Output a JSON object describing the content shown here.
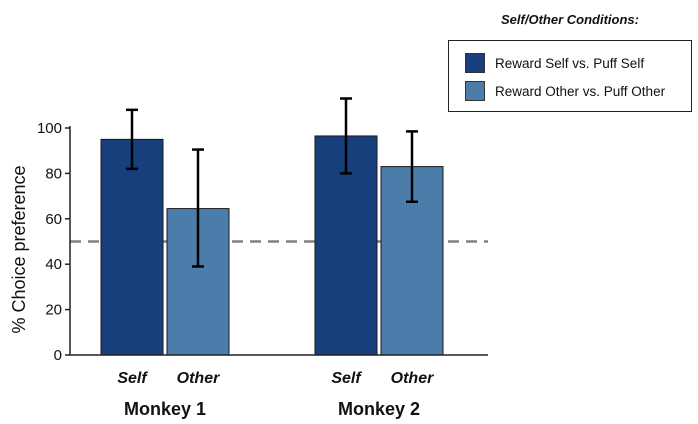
{
  "chart_data": {
    "type": "bar",
    "ylabel": "% Choice preference",
    "ylim": [
      0,
      100
    ],
    "yticks": [
      0,
      20,
      40,
      60,
      80,
      100
    ],
    "reference_line": 50,
    "groups": [
      "Monkey 1",
      "Monkey 2"
    ],
    "categories": [
      "Self",
      "Other"
    ],
    "series": [
      {
        "name": "Reward Self vs. Puff Self",
        "category": "Self",
        "color": "#163f7c",
        "values": [
          95,
          96.5
        ],
        "error_low": [
          82,
          80
        ],
        "error_high": [
          108,
          113
        ]
      },
      {
        "name": "Reward Other vs. Puff Other",
        "category": "Other",
        "color": "#4c7daa",
        "values": [
          64.5,
          83
        ],
        "error_low": [
          39,
          67.5
        ],
        "error_high": [
          90.5,
          98.5
        ]
      }
    ],
    "legend": {
      "title": "Self/Other Conditions:",
      "placement": "top-right"
    }
  }
}
